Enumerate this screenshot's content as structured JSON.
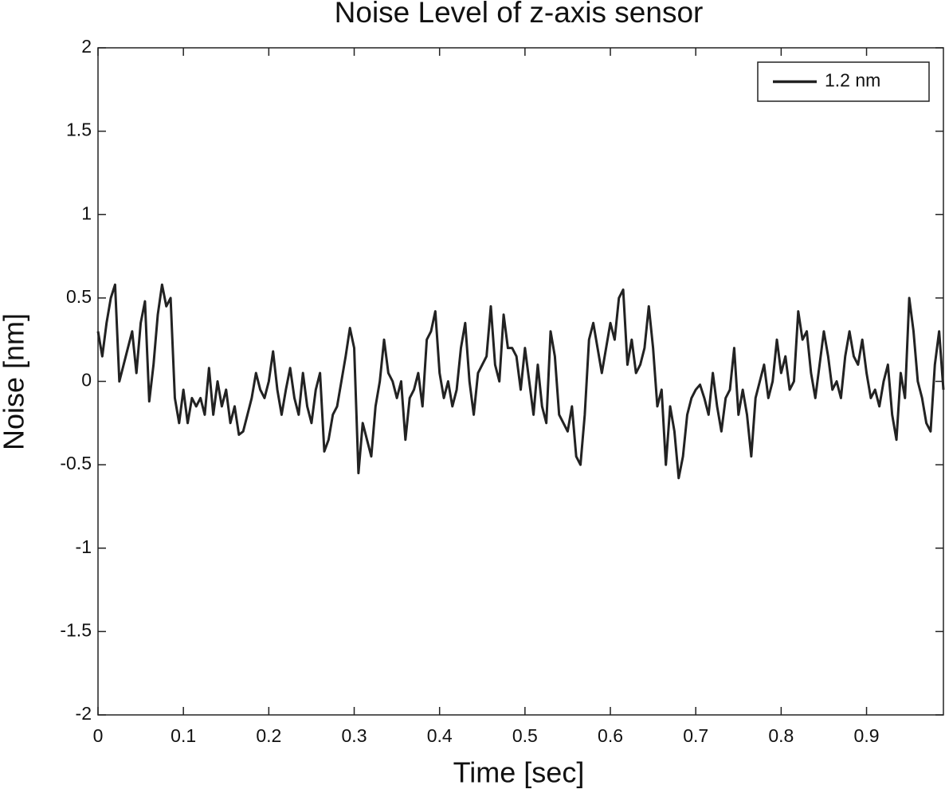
{
  "chart_data": {
    "type": "line",
    "title": "Noise Level of z-axis sensor",
    "x_label": "Time [sec]",
    "y_label": "Noise [nm]",
    "x": [
      0,
      0.005,
      0.01,
      0.015,
      0.02,
      0.025,
      0.03,
      0.035,
      0.04,
      0.045,
      0.05,
      0.055,
      0.06,
      0.065,
      0.07,
      0.075,
      0.08,
      0.085,
      0.09,
      0.095,
      0.1,
      0.105,
      0.11,
      0.115,
      0.12,
      0.125,
      0.13,
      0.135,
      0.14,
      0.145,
      0.15,
      0.155,
      0.16,
      0.165,
      0.17,
      0.175,
      0.18,
      0.185,
      0.19,
      0.195,
      0.2,
      0.205,
      0.21,
      0.215,
      0.22,
      0.225,
      0.23,
      0.235,
      0.24,
      0.245,
      0.25,
      0.255,
      0.26,
      0.265,
      0.27,
      0.275,
      0.28,
      0.285,
      0.29,
      0.295,
      0.3,
      0.305,
      0.31,
      0.315,
      0.32,
      0.325,
      0.33,
      0.335,
      0.34,
      0.345,
      0.35,
      0.355,
      0.36,
      0.365,
      0.37,
      0.375,
      0.38,
      0.385,
      0.39,
      0.395,
      0.4,
      0.405,
      0.41,
      0.415,
      0.42,
      0.425,
      0.43,
      0.435,
      0.44,
      0.445,
      0.45,
      0.455,
      0.46,
      0.465,
      0.47,
      0.475,
      0.48,
      0.485,
      0.49,
      0.495,
      0.5,
      0.505,
      0.51,
      0.515,
      0.52,
      0.525,
      0.53,
      0.535,
      0.54,
      0.545,
      0.55,
      0.555,
      0.56,
      0.565,
      0.57,
      0.575,
      0.58,
      0.585,
      0.59,
      0.595,
      0.6,
      0.605,
      0.61,
      0.615,
      0.62,
      0.625,
      0.63,
      0.635,
      0.64,
      0.645,
      0.65,
      0.655,
      0.66,
      0.665,
      0.67,
      0.675,
      0.68,
      0.685,
      0.69,
      0.695,
      0.7,
      0.705,
      0.71,
      0.715,
      0.72,
      0.725,
      0.73,
      0.735,
      0.74,
      0.745,
      0.75,
      0.755,
      0.76,
      0.765,
      0.77,
      0.775,
      0.78,
      0.785,
      0.79,
      0.795,
      0.8,
      0.805,
      0.81,
      0.815,
      0.82,
      0.825,
      0.83,
      0.835,
      0.84,
      0.845,
      0.85,
      0.855,
      0.86,
      0.865,
      0.87,
      0.875,
      0.88,
      0.885,
      0.89,
      0.895,
      0.9,
      0.905,
      0.91,
      0.915,
      0.92,
      0.925,
      0.93,
      0.935,
      0.94,
      0.945,
      0.95,
      0.955,
      0.96,
      0.965,
      0.97,
      0.975,
      0.98,
      0.985,
      0.99
    ],
    "series": [
      {
        "name": "1.2 nm",
        "color": "#222222",
        "values": [
          0.3,
          0.15,
          0.35,
          0.5,
          0.58,
          0.0,
          0.1,
          0.2,
          0.3,
          0.05,
          0.35,
          0.48,
          -0.12,
          0.1,
          0.4,
          0.58,
          0.45,
          0.5,
          -0.1,
          -0.25,
          -0.05,
          -0.25,
          -0.1,
          -0.15,
          -0.1,
          -0.2,
          0.08,
          -0.2,
          0.0,
          -0.15,
          -0.05,
          -0.25,
          -0.15,
          -0.32,
          -0.3,
          -0.2,
          -0.1,
          0.05,
          -0.05,
          -0.1,
          0.0,
          0.18,
          -0.05,
          -0.2,
          -0.05,
          0.08,
          -0.1,
          -0.2,
          0.05,
          -0.15,
          -0.25,
          -0.05,
          0.05,
          -0.42,
          -0.35,
          -0.2,
          -0.15,
          0.0,
          0.15,
          0.32,
          0.2,
          -0.55,
          -0.25,
          -0.35,
          -0.45,
          -0.15,
          0.0,
          0.25,
          0.05,
          0.0,
          -0.1,
          0.0,
          -0.35,
          -0.1,
          -0.05,
          0.05,
          -0.15,
          0.25,
          0.3,
          0.42,
          0.05,
          -0.1,
          0.0,
          -0.15,
          -0.05,
          0.2,
          0.35,
          0.0,
          -0.2,
          0.05,
          0.1,
          0.15,
          0.45,
          0.1,
          0.0,
          0.4,
          0.2,
          0.2,
          0.15,
          -0.05,
          0.2,
          0.0,
          -0.2,
          0.1,
          -0.15,
          -0.25,
          0.3,
          0.15,
          -0.2,
          -0.25,
          -0.3,
          -0.15,
          -0.45,
          -0.5,
          -0.2,
          0.25,
          0.35,
          0.2,
          0.05,
          0.2,
          0.35,
          0.25,
          0.5,
          0.55,
          0.1,
          0.25,
          0.05,
          0.1,
          0.2,
          0.45,
          0.2,
          -0.15,
          -0.05,
          -0.5,
          -0.15,
          -0.3,
          -0.58,
          -0.45,
          -0.2,
          -0.1,
          -0.05,
          -0.02,
          -0.1,
          -0.2,
          0.05,
          -0.15,
          -0.3,
          -0.1,
          -0.05,
          0.2,
          -0.2,
          -0.05,
          -0.2,
          -0.45,
          -0.1,
          0.0,
          0.1,
          -0.1,
          0.0,
          0.25,
          0.05,
          0.15,
          -0.05,
          0.0,
          0.42,
          0.25,
          0.3,
          0.05,
          -0.1,
          0.1,
          0.3,
          0.15,
          -0.05,
          0.0,
          -0.1,
          0.15,
          0.3,
          0.15,
          0.1,
          0.25,
          0.05,
          -0.1,
          -0.05,
          -0.15,
          0.0,
          0.1,
          -0.2,
          -0.35,
          0.05,
          -0.1,
          0.5,
          0.3,
          0.0,
          -0.1,
          -0.25,
          -0.3,
          0.1,
          0.3,
          -0.05
        ]
      }
    ],
    "xlim": [
      0,
      0.99
    ],
    "ylim": [
      -2,
      2
    ],
    "xticks": [
      0,
      0.1,
      0.2,
      0.3,
      0.4,
      0.5,
      0.6,
      0.7,
      0.8,
      0.9
    ],
    "yticks": [
      2,
      1.5,
      1,
      0.5,
      0,
      -0.5,
      -1,
      -1.5,
      -2
    ],
    "legend": "upper right"
  }
}
